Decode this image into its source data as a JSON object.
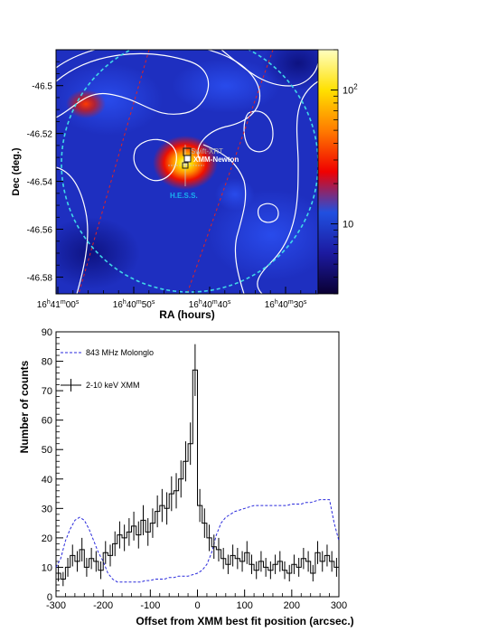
{
  "chart_data": [
    {
      "type": "heatmap",
      "xlabel": "RA (hours)",
      "ylabel": "Dec (deg.)",
      "x_ticks": [
        {
          "h": "16",
          "m": "41",
          "s": "00"
        },
        {
          "h": "16",
          "m": "40",
          "s": "50"
        },
        {
          "h": "16",
          "m": "40",
          "s": "40"
        },
        {
          "h": "16",
          "m": "40",
          "s": "30"
        }
      ],
      "y_ticks": [
        "-46.5",
        "-46.52",
        "-46.54",
        "-46.56",
        "-46.58"
      ],
      "colorbar": {
        "scale": "log",
        "range": [
          3,
          200
        ],
        "ticks": [
          {
            "value": 10,
            "label": "10"
          },
          {
            "value": 100,
            "base": "10",
            "exp": "2"
          }
        ],
        "colors": [
          "#0a0033",
          "#1c1aa0",
          "#2050e0",
          "#f00000",
          "#ff7a00",
          "#ffe000",
          "#ffffc0"
        ]
      },
      "annotations": {
        "source_1": "Swift-XRT",
        "source_2": "XMM-Newton",
        "source_3": "H.E.S.S."
      },
      "colors": {
        "swift": "#b0b0b0",
        "xmm": "#ffffff",
        "hess": "#19b0f0",
        "hess_circle": "#40d8e8",
        "profile_band": "#e02020",
        "contours": "#ffffff"
      }
    },
    {
      "type": "line",
      "xlabel": "Offset from XMM best fit position (arcsec.)",
      "ylabel": "Number of counts",
      "xlim": [
        -300,
        300
      ],
      "ylim": [
        0,
        90
      ],
      "x_ticks": [
        -300,
        -200,
        -100,
        0,
        100,
        200,
        300
      ],
      "y_ticks": [
        0,
        10,
        20,
        30,
        40,
        50,
        60,
        70,
        80,
        90
      ],
      "legend_position": "top-left",
      "bin_width": 10,
      "series": [
        {
          "name": "843 MHz Molonglo",
          "style": "dashed",
          "color": "#2a2adc",
          "x": [
            -300,
            -290,
            -280,
            -270,
            -260,
            -250,
            -240,
            -230,
            -220,
            -210,
            -200,
            -190,
            -180,
            -170,
            -160,
            -150,
            -140,
            -130,
            -120,
            -110,
            -100,
            -90,
            -80,
            -70,
            -60,
            -50,
            -40,
            -30,
            -20,
            -10,
            0,
            10,
            20,
            30,
            40,
            50,
            60,
            70,
            80,
            90,
            100,
            110,
            120,
            130,
            140,
            150,
            160,
            170,
            180,
            190,
            200,
            210,
            220,
            230,
            240,
            250,
            260,
            270,
            280,
            290,
            300
          ],
          "values": [
            10,
            13,
            19,
            23,
            26,
            27,
            26,
            23,
            19,
            15,
            12,
            8,
            6,
            5,
            5,
            5,
            5,
            5,
            5,
            5.5,
            5.5,
            6,
            6,
            6,
            6.5,
            6.5,
            7,
            7,
            7,
            7.5,
            8,
            9,
            11,
            15,
            21,
            25,
            27,
            28,
            29,
            29.5,
            30,
            30.5,
            31,
            31,
            31,
            31,
            31,
            31,
            31,
            31,
            31.5,
            31.5,
            31.5,
            32,
            32,
            32.5,
            33,
            33,
            33,
            25,
            19
          ]
        },
        {
          "name": "2-10 keV XMM",
          "style": "histogram",
          "color": "#000000",
          "x": [
            -300,
            -290,
            -280,
            -270,
            -260,
            -250,
            -240,
            -230,
            -220,
            -210,
            -200,
            -190,
            -180,
            -170,
            -160,
            -150,
            -140,
            -130,
            -120,
            -110,
            -100,
            -90,
            -80,
            -70,
            -60,
            -50,
            -40,
            -30,
            -20,
            -10,
            0,
            10,
            20,
            30,
            40,
            50,
            60,
            70,
            80,
            90,
            100,
            110,
            120,
            130,
            140,
            150,
            160,
            170,
            180,
            190,
            200,
            210,
            220,
            230,
            240,
            250,
            260,
            270,
            280,
            290
          ],
          "values": [
            8,
            6,
            10,
            14,
            12,
            16,
            10,
            13,
            12,
            9,
            15,
            14,
            18,
            21,
            20,
            22,
            24,
            21,
            26,
            22,
            25,
            29,
            31,
            30,
            35,
            36,
            40,
            46,
            52,
            77,
            31,
            25,
            20,
            17,
            16,
            13,
            11,
            14,
            13,
            12,
            15,
            11,
            9,
            12,
            10,
            9,
            11,
            12,
            9,
            8,
            11,
            10,
            13,
            12,
            8,
            15,
            12,
            14,
            12,
            10
          ],
          "errors": [
            2.8,
            2.4,
            3.2,
            3.7,
            3.5,
            4.0,
            3.2,
            3.6,
            3.5,
            3.0,
            3.9,
            3.7,
            4.2,
            4.6,
            4.5,
            4.7,
            4.9,
            4.6,
            5.1,
            4.7,
            5.0,
            5.4,
            5.6,
            5.5,
            5.9,
            6.0,
            6.3,
            6.8,
            7.2,
            8.8,
            5.6,
            5.0,
            4.5,
            4.1,
            4.0,
            3.6,
            3.3,
            3.7,
            3.6,
            3.5,
            3.9,
            3.3,
            3.0,
            3.5,
            3.2,
            3.0,
            3.3,
            3.5,
            3.0,
            2.8,
            3.3,
            3.2,
            3.6,
            3.5,
            2.8,
            3.9,
            3.5,
            3.7,
            3.5,
            3.2
          ]
        }
      ]
    }
  ]
}
